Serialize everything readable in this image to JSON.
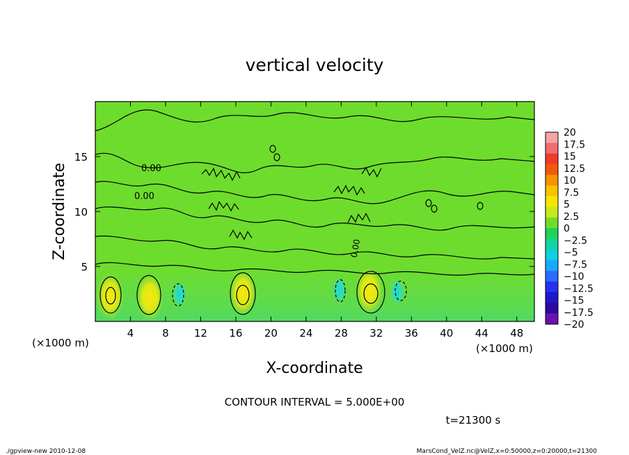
{
  "chart_data": {
    "type": "heatmap",
    "title": "vertical velocity",
    "xlabel": "X-coordinate",
    "ylabel": "Z-coordinate",
    "x_unit": "(×1000 m)",
    "y_unit": "(×1000 m)",
    "x_range": [
      0,
      50
    ],
    "y_range": [
      0,
      20
    ],
    "x_ticks": [
      "4",
      "8",
      "12",
      "16",
      "20",
      "24",
      "28",
      "32",
      "36",
      "40",
      "44",
      "48"
    ],
    "y_ticks": [
      "5",
      "10",
      "15"
    ],
    "colorbar": {
      "labels": [
        "20",
        "17.5",
        "15",
        "12.5",
        "10",
        "7.5",
        "5",
        "2.5",
        "0",
        "−2.5",
        "−5",
        "−7.5",
        "−10",
        "−12.5",
        "−15",
        "−17.5",
        "−20"
      ],
      "colors": [
        "#f6a3a3",
        "#f26d6d",
        "#f03a2a",
        "#f25a0a",
        "#f89200",
        "#f7c400",
        "#f5e600",
        "#c8e81e",
        "#6fdc2a",
        "#20d25a",
        "#12d4a0",
        "#10d0e0",
        "#1aa8ff",
        "#2a6cff",
        "#2432f0",
        "#1e18c8",
        "#2a0aa0",
        "#6a10b0"
      ]
    },
    "contour_labels": [
      "0.00",
      "0.00",
      "0.00"
    ],
    "field_features": [
      {
        "sign": "positive",
        "peak": 5,
        "x": 1.7,
        "z": 2.3
      },
      {
        "sign": "positive",
        "peak": 5,
        "x": 6.2,
        "z": 2.2
      },
      {
        "sign": "positive",
        "peak": 5,
        "x": 16.8,
        "z": 2.6
      },
      {
        "sign": "positive",
        "peak": 5,
        "x": 31.2,
        "z": 2.8
      },
      {
        "sign": "negative",
        "peak": -5,
        "x": 9.6,
        "z": 2.5
      },
      {
        "sign": "negative",
        "peak": -5,
        "x": 27.8,
        "z": 2.9
      },
      {
        "sign": "negative",
        "peak": -5,
        "x": 34.4,
        "z": 2.7
      }
    ]
  },
  "footer": {
    "contour_interval": "CONTOUR INTERVAL = 5.000E+00",
    "time": "t=21300 s",
    "left_note": "./gpview-new  2010-12-08",
    "right_note": "MarsCond_VelZ.nc@VelZ,x=0:50000,z=0:20000,t=21300"
  }
}
